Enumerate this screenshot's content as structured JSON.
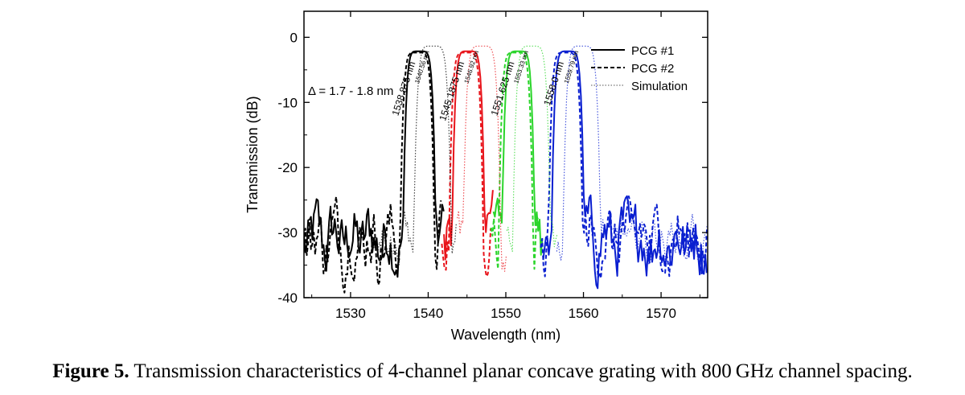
{
  "chart_data": {
    "type": "line",
    "xlabel": "Wavelength (nm)",
    "ylabel": "Transmission (dB)",
    "xlim": [
      1524,
      1576
    ],
    "ylim": [
      -40,
      4
    ],
    "xticks": [
      1530,
      1540,
      1550,
      1560,
      1570
    ],
    "yticks": [
      0,
      -10,
      -20,
      -30,
      -40
    ],
    "grid": false,
    "legend_position": "top-right",
    "noise_floor_db": -31,
    "annotation": "Δ = 1.7 - 1.8 nm",
    "channel_colors": [
      "#000000",
      "#e8141b",
      "#2bd52b",
      "#0a1fd0"
    ],
    "series": [
      {
        "name": "PCG #1",
        "style": "solid",
        "peaks_nm": [
          1538.875,
          1545.1875,
          1551.625,
          1558.0
        ],
        "peak_db": -2,
        "half_width_nm": 2.1
      },
      {
        "name": "PCG #2",
        "style": "dashed",
        "peaks_nm": [
          1538.6,
          1544.9,
          1551.3,
          1557.7
        ],
        "peak_db": -2.2,
        "half_width_nm": 2.2
      },
      {
        "name": "Simulation",
        "style": "dotted",
        "peaks_nm": [
          1540.56,
          1546.92,
          1553.33,
          1559.79
        ],
        "peak_db": -1.2,
        "half_width_nm": 2.4
      }
    ],
    "peak_labels": [
      {
        "text": "1538.875 nm",
        "x": 1538.875,
        "big": true
      },
      {
        "text": "1540.56 nm",
        "x": 1540.56,
        "big": false
      },
      {
        "text": "1545.1875 nm",
        "x": 1545.1875,
        "big": true
      },
      {
        "text": "1546.92 nm",
        "x": 1546.92,
        "big": false
      },
      {
        "text": "1551.625 nm",
        "x": 1551.625,
        "big": true
      },
      {
        "text": "1553.33 nm",
        "x": 1553.33,
        "big": false
      },
      {
        "text": "1558.0 nm",
        "x": 1558.0,
        "big": true
      },
      {
        "text": "1559.79 nm",
        "x": 1559.79,
        "big": false
      }
    ]
  },
  "caption": {
    "label": "Figure 5.",
    "text": " Transmission characteristics of 4-channel planar concave grating with 800 GHz channel spacing."
  }
}
